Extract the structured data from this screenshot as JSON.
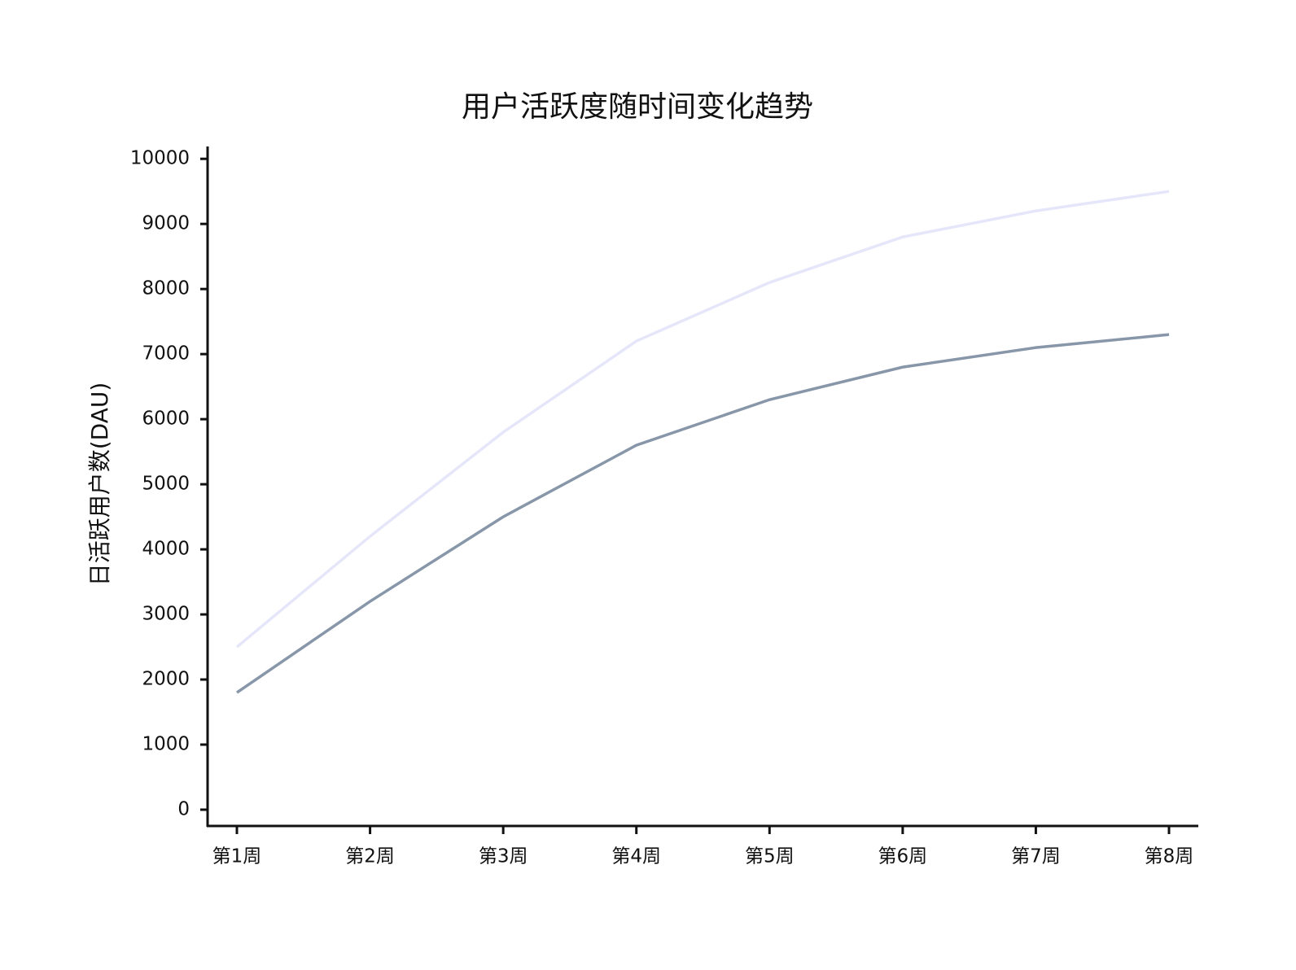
{
  "chart_data": {
    "type": "line",
    "title": "用户活跃度随时间变化趋势",
    "y_label": "日活跃用户数(DAU)",
    "categories": [
      "第1周",
      "第2周",
      "第3周",
      "第4周",
      "第5周",
      "第6周",
      "第7周",
      "第8周"
    ],
    "series": [
      {
        "color": "#e6e6fa",
        "values": [
          2500,
          4200,
          5800,
          7200,
          8100,
          8800,
          9200,
          9500
        ]
      },
      {
        "color": "#8796a8",
        "values": [
          1800,
          3200,
          4500,
          5600,
          6300,
          6800,
          7100,
          7300
        ]
      }
    ],
    "ylim": [
      -250,
      10190
    ],
    "yticks": [
      0,
      1000,
      2000,
      3000,
      4000,
      5000,
      6000,
      7000,
      8000,
      9000,
      10000
    ],
    "grid": false
  }
}
